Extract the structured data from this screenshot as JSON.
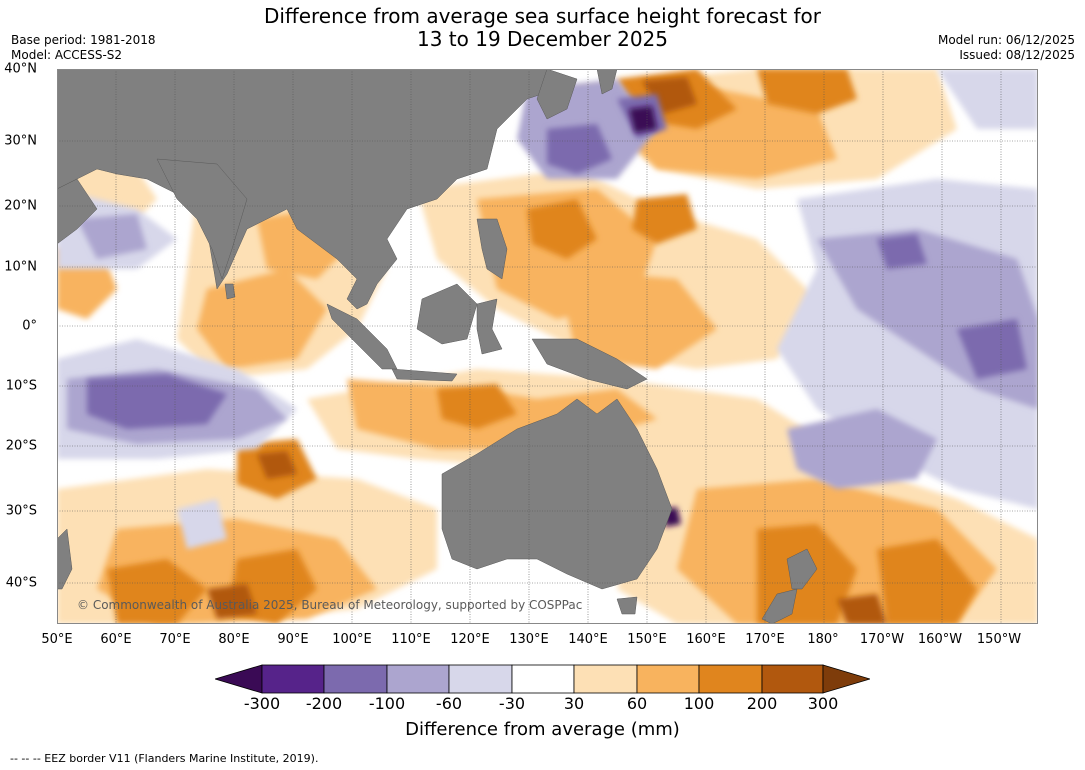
{
  "title": {
    "line1": "Difference from average sea surface height forecast for",
    "line2": "13 to 19 December 2025"
  },
  "meta_left": {
    "base_period": "Base period: 1981-2018",
    "model": "Model: ACCESS-S2"
  },
  "meta_right": {
    "model_run": "Model run: 06/12/2025",
    "issued": "Issued: 08/12/2025"
  },
  "map": {
    "lat_labels": [
      "40°N",
      "30°N",
      "20°N",
      "10°N",
      "0°",
      "10°S",
      "20°S",
      "30°S",
      "40°S"
    ],
    "lon_labels": [
      "50°E",
      "60°E",
      "70°E",
      "80°E",
      "90°E",
      "100°E",
      "110°E",
      "120°E",
      "130°E",
      "140°E",
      "150°E",
      "160°E",
      "170°E",
      "180°",
      "170°W",
      "160°W",
      "150°W"
    ],
    "copyright": "© Commonwealth of Australia 2025, Bureau of Meteorology, supported by COSPPac",
    "land_color": "#808080",
    "ocean_color": "#ffffff"
  },
  "colorbar": {
    "tick_labels": [
      "-300",
      "-200",
      "-100",
      "-60",
      "-30",
      "30",
      "60",
      "100",
      "200",
      "300"
    ],
    "colors": [
      "#3a0a55",
      "#56238a",
      "#7c6aae",
      "#aca5cf",
      "#d7d7ea",
      "#ffffff",
      "#fde0b5",
      "#f8b35e",
      "#e0851e",
      "#b1580e",
      "#7e3c0a"
    ],
    "label": "Difference from average (mm)"
  },
  "footnote": "--  --  -- EEZ border V11 (Flanders Marine Institute, 2019)."
}
